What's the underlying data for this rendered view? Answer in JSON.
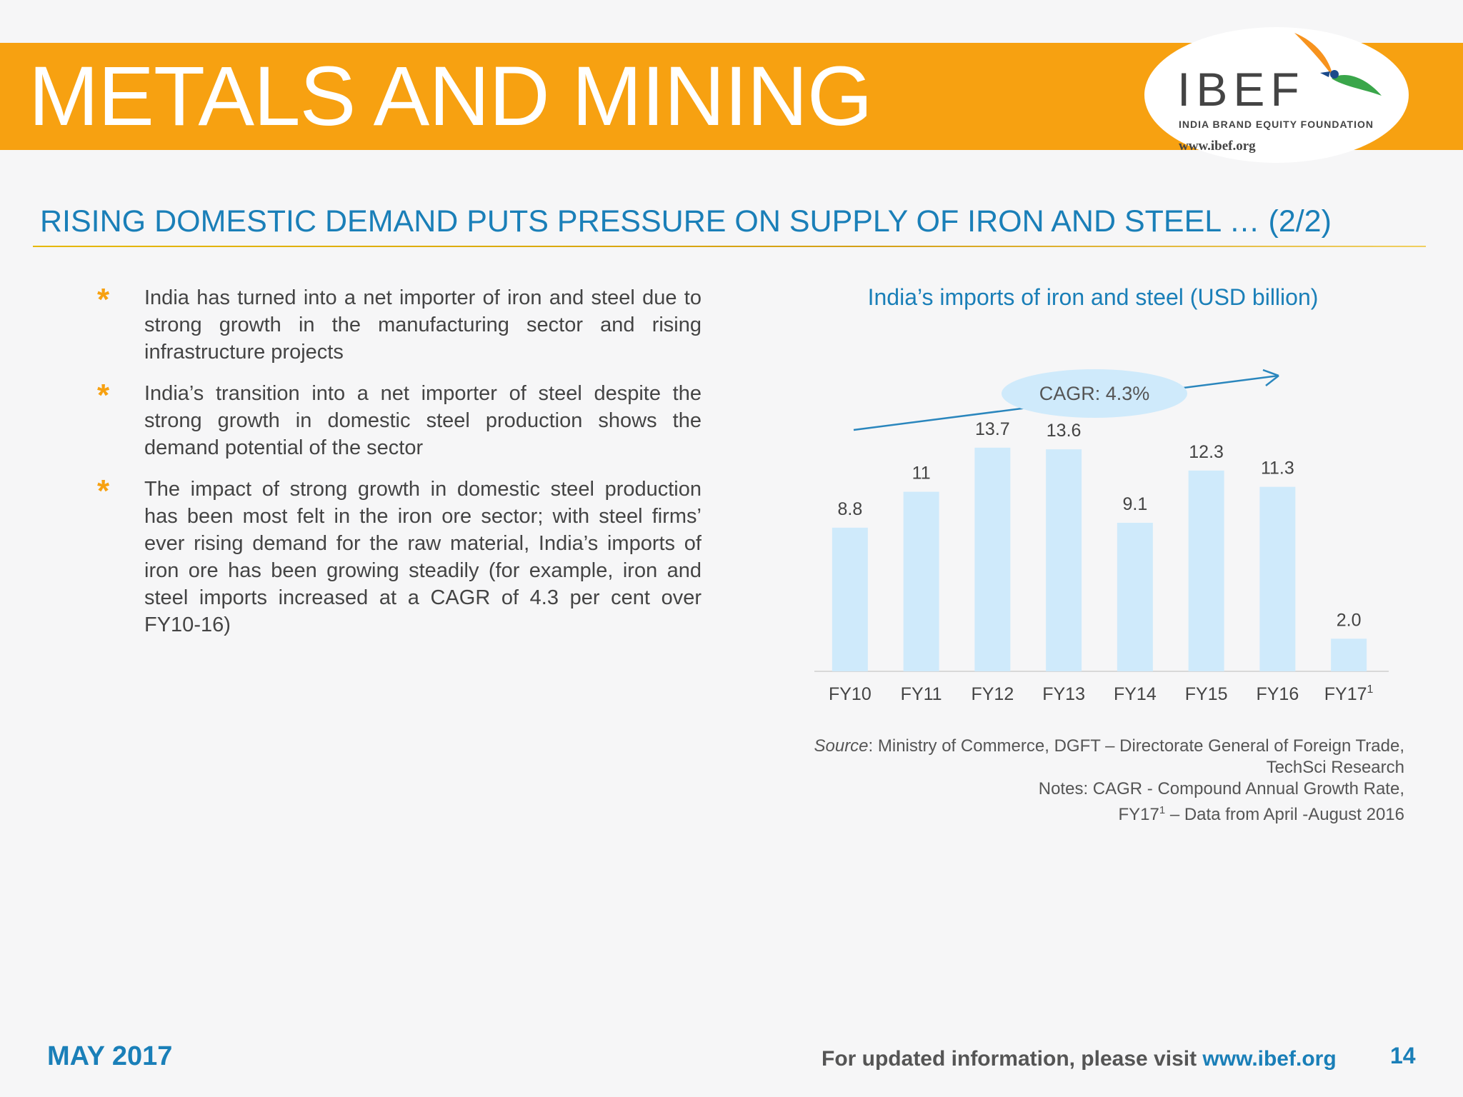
{
  "header": {
    "title": "METALS AND MINING",
    "logo_text": "IBEF",
    "logo_subtitle": "INDIA BRAND EQUITY FOUNDATION",
    "logo_url": "www.ibef.org"
  },
  "subtitle": "RISING DOMESTIC DEMAND PUTS PRESSURE ON SUPPLY OF IRON AND STEEL … (2/2)",
  "bullets": [
    "India has turned into a net importer of iron and steel due to strong growth in the manufacturing sector and rising infrastructure projects",
    "India’s transition into a net importer of steel despite the strong growth in domestic steel production shows the demand potential of the sector",
    "The impact of strong growth in domestic steel production has been most felt in the iron ore sector; with steel firms’ ever rising demand for the raw material, India’s imports of iron ore has been growing steadily (for example, iron and steel imports increased at a CAGR of 4.3 per cent over FY10-16)"
  ],
  "bullet_marker": "*",
  "chart_data": {
    "type": "bar",
    "title": "India’s imports of iron and steel (USD billion)",
    "categories": [
      "FY10",
      "FY11",
      "FY12",
      "FY13",
      "FY14",
      "FY15",
      "FY16",
      "FY17"
    ],
    "category_superscripts": [
      "",
      "",
      "",
      "",
      "",
      "",
      "",
      "1"
    ],
    "values": [
      8.8,
      11,
      13.7,
      13.6,
      9.1,
      12.3,
      11.3,
      2.0
    ],
    "value_labels": [
      "8.8",
      "11",
      "13.7",
      "13.6",
      "9.1",
      "12.3",
      "11.3",
      "2.0"
    ],
    "ylim": [
      0,
      14
    ],
    "bar_color": "#cfeafb",
    "annotation": "CAGR: 4.3%",
    "annotation_color": "#cfeafb",
    "arrow_color": "#2a86bd"
  },
  "source": {
    "label": "Source",
    "text": ": Ministry of Commerce, DGFT – Directorate General of Foreign Trade,",
    "text2": "TechSci Research",
    "notes1": "Notes: CAGR - Compound Annual Growth Rate,",
    "notes2_prefix": "FY17",
    "notes2_sup": "1",
    "notes2_suffix": " – Data from April -August 2016"
  },
  "footer": {
    "date": "MAY 2017",
    "visit_text": "For updated information, please visit ",
    "url": "www.ibef.org",
    "page": "14"
  },
  "colors": {
    "header": "#f7a111",
    "accent": "#1a7fb8"
  }
}
